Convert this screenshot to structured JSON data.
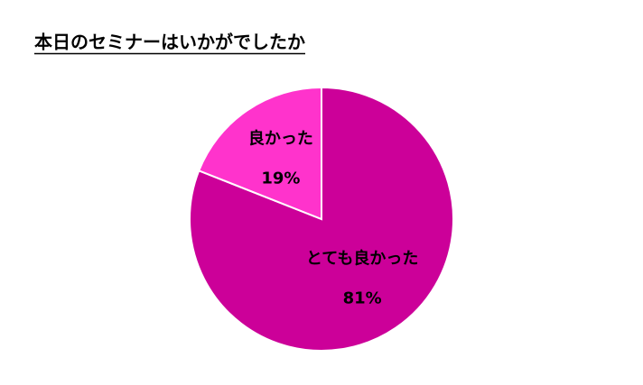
{
  "chart_data": {
    "type": "pie",
    "title": "本日のセミナーはいかがでしたか",
    "categories": [
      "とても良かった",
      "良かった"
    ],
    "values": [
      81,
      19
    ],
    "value_labels": [
      "81%",
      "19%"
    ],
    "colors": [
      "#cc0099",
      "#ff33cc"
    ]
  }
}
